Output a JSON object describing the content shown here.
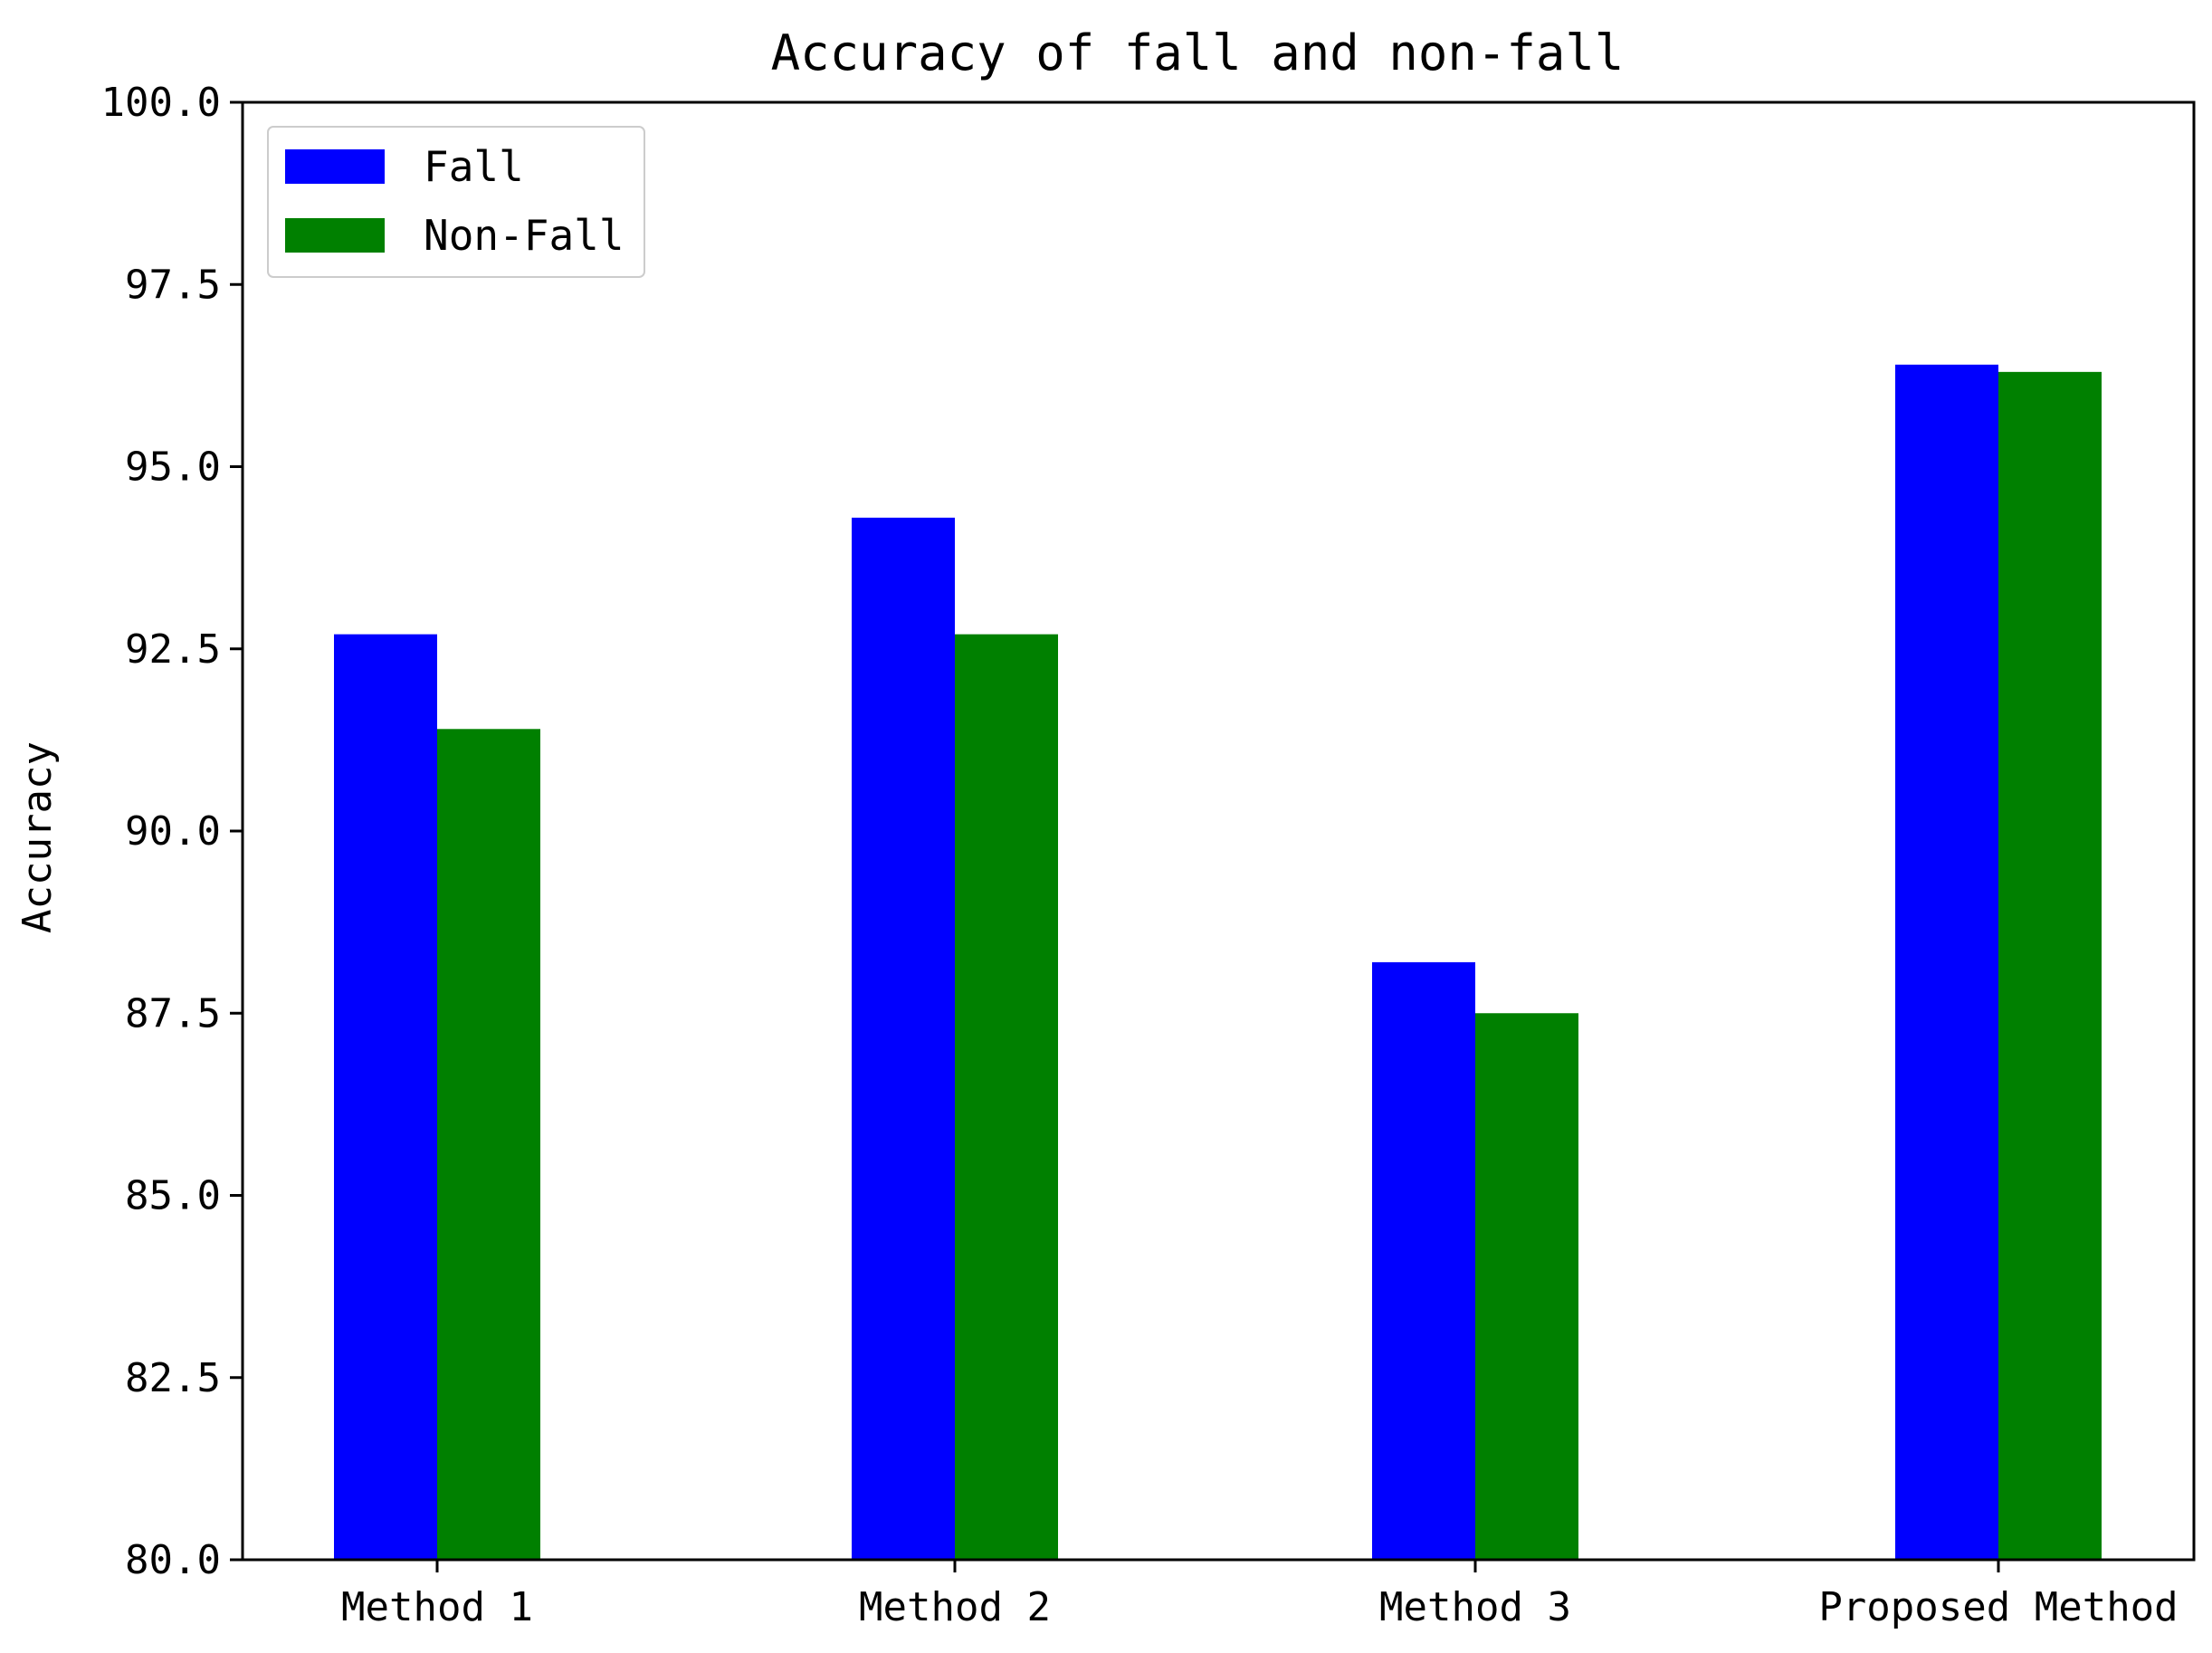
{
  "chart_data": {
    "type": "bar",
    "title": "Accuracy of fall and non-fall",
    "xlabel": "",
    "ylabel": "Accuracy",
    "categories": [
      "Method 1",
      "Method 2",
      "Method 3",
      "Proposed Method"
    ],
    "series": [
      {
        "name": "Fall",
        "color": "#0000ff",
        "values": [
          92.7,
          94.3,
          88.2,
          96.4
        ]
      },
      {
        "name": "Non-Fall",
        "color": "#008000",
        "values": [
          91.4,
          92.7,
          87.5,
          96.3
        ]
      }
    ],
    "ylim": [
      80.0,
      100.0
    ],
    "yticks": [
      "80.0",
      "82.5",
      "85.0",
      "87.5",
      "90.0",
      "92.5",
      "95.0",
      "97.5",
      "100.0"
    ],
    "grid": false,
    "legend_position": "upper-left"
  }
}
